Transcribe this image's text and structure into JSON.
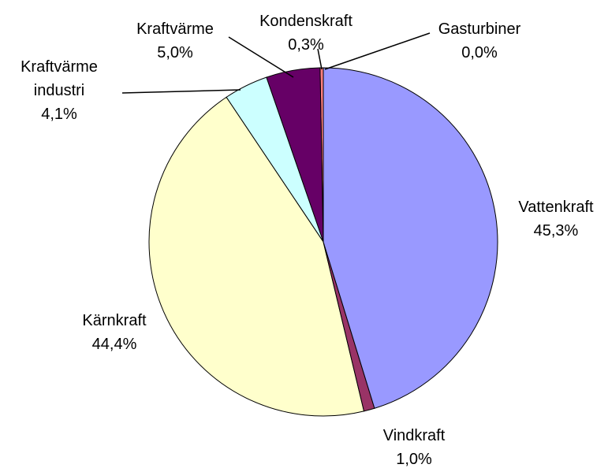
{
  "chart_data": {
    "type": "pie",
    "categories": [
      "Vattenkraft",
      "Vindkraft",
      "Kärnkraft",
      "Kraftvärme industri",
      "Kraftvärme",
      "Kondenskraft",
      "Gasturbiner"
    ],
    "values": [
      45.3,
      1.0,
      44.4,
      4.1,
      5.0,
      0.3,
      0.0
    ],
    "value_labels": [
      "45,3%",
      "1,0%",
      "44,4%",
      "4,1%",
      "5,0%",
      "0,3%",
      "0,0%"
    ],
    "colors": [
      "#9999ff",
      "#993366",
      "#ffffcc",
      "#ccffff",
      "#660066",
      "#ff8080",
      "#0066cc"
    ]
  }
}
